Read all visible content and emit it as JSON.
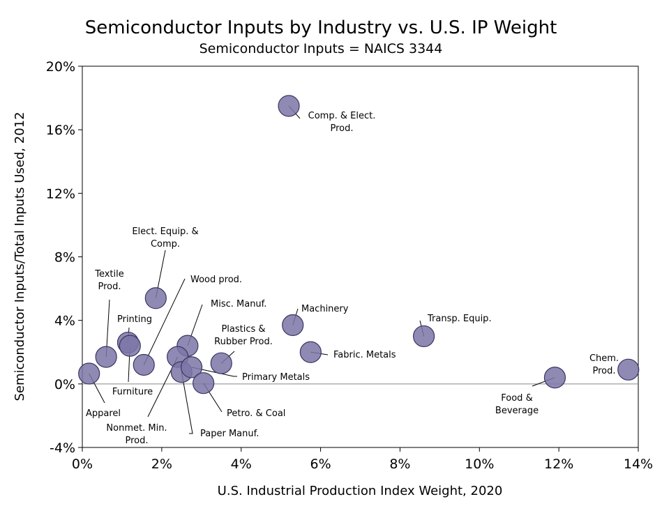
{
  "chart_data": {
    "type": "scatter",
    "title": "Semiconductor Inputs by Industry vs. U.S. IP Weight",
    "subtitle": "Semiconductor Inputs = NAICS 3344",
    "xlabel": "U.S. Industrial Production Index Weight, 2020",
    "ylabel": "Semiconductor Inputs/Total Inputs Used, 2012",
    "xlim": [
      0,
      14
    ],
    "ylim": [
      -4,
      20
    ],
    "x_ticks": [
      0,
      2,
      4,
      6,
      8,
      10,
      12,
      14
    ],
    "y_ticks": [
      -4,
      0,
      4,
      8,
      12,
      16,
      20
    ],
    "x_tick_labels": [
      "0%",
      "2%",
      "4%",
      "6%",
      "8%",
      "10%",
      "12%",
      "14%"
    ],
    "y_tick_labels": [
      "-4%",
      "0%",
      "4%",
      "8%",
      "12%",
      "16%",
      "20%"
    ],
    "zero_line": true,
    "grid": false,
    "colors": {
      "marker_fill": "#7b75a6",
      "marker_stroke": "#3a3560"
    },
    "points": [
      {
        "name": "Comp. & Elect. Prod.",
        "lines": [
          "Comp. & Elect.",
          "Prod."
        ],
        "x": 5.2,
        "y": 17.5
      },
      {
        "name": "Elect. Equip. & Comp.",
        "lines": [
          "Elect. Equip. &",
          "Comp."
        ],
        "x": 1.85,
        "y": 5.4
      },
      {
        "name": "Textile Prod.",
        "lines": [
          "Textile",
          "Prod."
        ],
        "x": 0.6,
        "y": 1.7
      },
      {
        "name": "Printing",
        "lines": [
          "Printing"
        ],
        "x": 1.15,
        "y": 2.6
      },
      {
        "name": "Furniture",
        "lines": [
          "Furniture"
        ],
        "x": 1.2,
        "y": 2.4
      },
      {
        "name": "Wood prod.",
        "lines": [
          "Wood prod."
        ],
        "x": 1.55,
        "y": 1.2
      },
      {
        "name": "Misc. Manuf.",
        "lines": [
          "Misc. Manuf."
        ],
        "x": 2.65,
        "y": 2.4
      },
      {
        "name": "Apparel",
        "lines": [
          "Apparel"
        ],
        "x": 0.17,
        "y": 0.65
      },
      {
        "name": "Nonmet. Min. Prod.",
        "lines": [
          "Nonmet. Min.",
          "Prod."
        ],
        "x": 2.4,
        "y": 1.7
      },
      {
        "name": "Paper Manuf.",
        "lines": [
          "Paper Manuf."
        ],
        "x": 2.5,
        "y": 0.75
      },
      {
        "name": "Primary Metals",
        "lines": [
          "Primary Metals"
        ],
        "x": 2.75,
        "y": 1.05
      },
      {
        "name": "Petro. & Coal",
        "lines": [
          "Petro. & Coal"
        ],
        "x": 3.05,
        "y": 0.05
      },
      {
        "name": "Plastics & Rubber Prod.",
        "lines": [
          "Plastics &",
          "Rubber Prod."
        ],
        "x": 3.5,
        "y": 1.3
      },
      {
        "name": "Machinery",
        "lines": [
          "Machinery"
        ],
        "x": 5.3,
        "y": 3.7
      },
      {
        "name": "Fabric. Metals",
        "lines": [
          "Fabric. Metals"
        ],
        "x": 5.75,
        "y": 2.0
      },
      {
        "name": "Transp. Equip.",
        "lines": [
          "Transp. Equip."
        ],
        "x": 8.6,
        "y": 3.0
      },
      {
        "name": "Food & Beverage",
        "lines": [
          "Food &",
          "Beverage"
        ],
        "x": 11.9,
        "y": 0.4
      },
      {
        "name": "Chem. Prod.",
        "lines": [
          "Chem.",
          "Prod."
        ],
        "x": 13.75,
        "y": 0.9
      }
    ]
  }
}
